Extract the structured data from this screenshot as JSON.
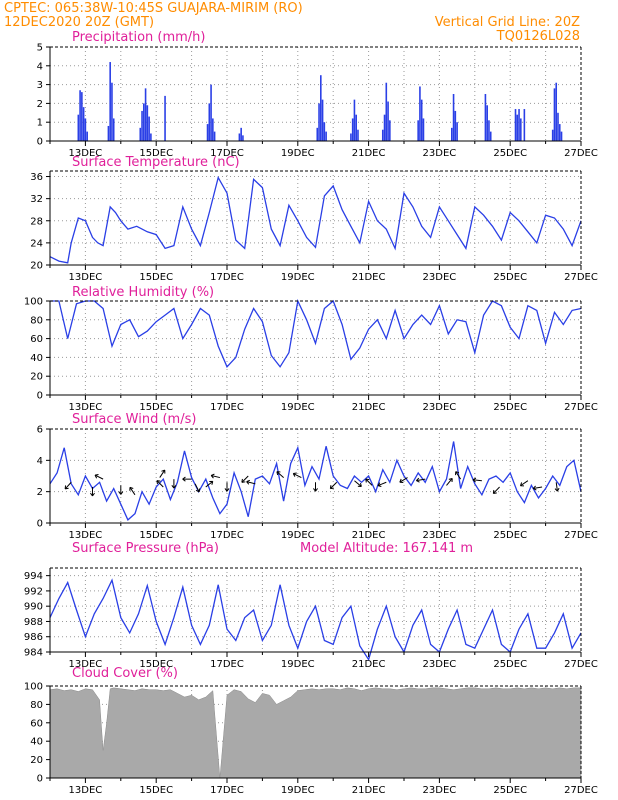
{
  "header": {
    "left_line1": "CPTEC:    065:38W-10:45S    GUAJARA-MIRIM (RO)",
    "left_line2": "12DEC2020 20Z (GMT)",
    "right_line1": "Vertical Grid Line: 20Z",
    "right_line2": "TQ0126L028"
  },
  "colors": {
    "header": "#ff8c00",
    "title": "#e0209a",
    "line": "#2a3fe6",
    "bar": "#2a3fe6",
    "cloud": "#a9a9a9",
    "grid": "#9a9a9a"
  },
  "x_day_labels": [
    "13DEC",
    "15DEC",
    "17DEC",
    "19DEC",
    "21DEC",
    "23DEC",
    "25DEC",
    "27DEC"
  ],
  "chart_data": [
    {
      "id": "precip",
      "type": "bar",
      "title": "Precipitation (mm/h)",
      "ylim": [
        0,
        5
      ],
      "yticks": [
        0,
        1,
        2,
        3,
        4,
        5
      ],
      "x_unit": "days since 12DEC2020 20Z",
      "bars": [
        [
          0.8,
          1.4
        ],
        [
          0.85,
          2.7
        ],
        [
          0.9,
          2.6
        ],
        [
          0.95,
          1.8
        ],
        [
          1.0,
          1.2
        ],
        [
          1.05,
          0.5
        ],
        [
          1.65,
          0.8
        ],
        [
          1.7,
          4.2
        ],
        [
          1.75,
          3.1
        ],
        [
          1.8,
          1.2
        ],
        [
          2.55,
          0.7
        ],
        [
          2.6,
          1.6
        ],
        [
          2.65,
          2.0
        ],
        [
          2.7,
          2.8
        ],
        [
          2.75,
          1.9
        ],
        [
          2.8,
          1.3
        ],
        [
          2.85,
          0.4
        ],
        [
          3.25,
          2.4
        ],
        [
          4.45,
          0.9
        ],
        [
          4.5,
          2.0
        ],
        [
          4.55,
          3.0
        ],
        [
          4.6,
          1.2
        ],
        [
          4.65,
          0.5
        ],
        [
          5.35,
          0.4
        ],
        [
          5.4,
          0.7
        ],
        [
          5.45,
          0.3
        ],
        [
          7.55,
          0.7
        ],
        [
          7.6,
          2.0
        ],
        [
          7.65,
          3.5
        ],
        [
          7.7,
          2.2
        ],
        [
          7.75,
          1.0
        ],
        [
          7.8,
          0.5
        ],
        [
          8.5,
          0.4
        ],
        [
          8.55,
          1.2
        ],
        [
          8.6,
          2.2
        ],
        [
          8.65,
          1.4
        ],
        [
          8.7,
          0.6
        ],
        [
          9.4,
          0.6
        ],
        [
          9.45,
          1.4
        ],
        [
          9.5,
          3.1
        ],
        [
          9.55,
          2.1
        ],
        [
          9.6,
          1.1
        ],
        [
          10.4,
          1.1
        ],
        [
          10.45,
          2.9
        ],
        [
          10.5,
          2.2
        ],
        [
          10.55,
          1.2
        ],
        [
          11.35,
          0.7
        ],
        [
          11.4,
          2.5
        ],
        [
          11.45,
          1.6
        ],
        [
          11.5,
          1.0
        ],
        [
          12.3,
          2.5
        ],
        [
          12.35,
          1.9
        ],
        [
          12.4,
          1.1
        ],
        [
          12.45,
          0.5
        ],
        [
          13.15,
          1.7
        ],
        [
          13.2,
          1.4
        ],
        [
          13.25,
          1.7
        ],
        [
          13.3,
          1.2
        ],
        [
          13.4,
          1.7
        ],
        [
          14.2,
          0.6
        ],
        [
          14.25,
          2.8
        ],
        [
          14.3,
          3.1
        ],
        [
          14.35,
          1.5
        ],
        [
          14.4,
          0.9
        ],
        [
          14.45,
          0.5
        ]
      ]
    },
    {
      "id": "temp",
      "type": "line",
      "title": "Surface Temperature (nC)",
      "ylim": [
        20,
        37
      ],
      "yticks": [
        20,
        24,
        28,
        32,
        36
      ],
      "x_unit": "days since 12DEC2020 20Z",
      "x": [
        0.0,
        0.25,
        0.5,
        0.6,
        0.8,
        1.0,
        1.2,
        1.35,
        1.5,
        1.7,
        1.85,
        2.0,
        2.2,
        2.45,
        2.75,
        3.0,
        3.25,
        3.5,
        3.75,
        4.0,
        4.25,
        4.5,
        4.75,
        5.0,
        5.25,
        5.5,
        5.75,
        6.0,
        6.25,
        6.5,
        6.75,
        7.0,
        7.25,
        7.5,
        7.75,
        8.0,
        8.25,
        8.5,
        8.75,
        9.0,
        9.25,
        9.5,
        9.75,
        10.0,
        10.25,
        10.5,
        10.75,
        11.0,
        11.25,
        11.5,
        11.75,
        12.0,
        12.25,
        12.5,
        12.75,
        13.0,
        13.25,
        13.5,
        13.75,
        14.0,
        14.25,
        14.5,
        14.75,
        15.0
      ],
      "y": [
        21.5,
        20.7,
        20.4,
        24.0,
        28.5,
        28.0,
        25.0,
        24.0,
        23.5,
        30.5,
        29.5,
        28.0,
        26.5,
        27.0,
        26.0,
        25.5,
        23.0,
        23.5,
        30.5,
        26.5,
        23.5,
        29.5,
        35.8,
        33.0,
        24.5,
        23.0,
        35.5,
        34.0,
        26.5,
        23.5,
        30.8,
        28.0,
        25.0,
        23.2,
        32.5,
        34.3,
        30.0,
        27.0,
        24.0,
        31.5,
        28.0,
        26.5,
        23.0,
        33.0,
        30.5,
        27.0,
        25.0,
        30.5,
        28.0,
        25.5,
        23.0,
        30.5,
        29.0,
        27.0,
        24.5,
        29.5,
        28.0,
        26.0,
        24.0,
        29.0,
        28.5,
        26.5,
        23.5,
        28.0
      ]
    },
    {
      "id": "rh",
      "type": "line",
      "title": "Relative Humidity (%)",
      "ylim": [
        0,
        100
      ],
      "yticks": [
        0,
        20,
        40,
        60,
        80,
        100
      ],
      "x_unit": "days since 12DEC2020 20Z",
      "x": [
        0.0,
        0.25,
        0.5,
        0.75,
        1.0,
        1.25,
        1.5,
        1.75,
        2.0,
        2.25,
        2.5,
        2.75,
        3.0,
        3.25,
        3.5,
        3.75,
        4.0,
        4.25,
        4.5,
        4.75,
        5.0,
        5.25,
        5.5,
        5.75,
        6.0,
        6.25,
        6.5,
        6.75,
        7.0,
        7.25,
        7.5,
        7.75,
        8.0,
        8.25,
        8.5,
        8.75,
        9.0,
        9.25,
        9.5,
        9.75,
        10.0,
        10.25,
        10.5,
        10.75,
        11.0,
        11.25,
        11.5,
        11.75,
        12.0,
        12.25,
        12.5,
        12.75,
        13.0,
        13.25,
        13.5,
        13.75,
        14.0,
        14.25,
        14.5,
        14.75,
        15.0
      ],
      "y": [
        100,
        100,
        60,
        97,
        100,
        100,
        92,
        52,
        75,
        80,
        62,
        68,
        78,
        85,
        92,
        60,
        75,
        92,
        85,
        52,
        30,
        40,
        70,
        92,
        78,
        42,
        30,
        45,
        100,
        80,
        55,
        92,
        100,
        75,
        38,
        50,
        70,
        80,
        60,
        90,
        60,
        75,
        85,
        75,
        95,
        65,
        80,
        78,
        45,
        85,
        100,
        95,
        72,
        60,
        95,
        90,
        55,
        88,
        75,
        90,
        92
      ],
      "point_marks_note": "no markers"
    },
    {
      "id": "wind",
      "type": "line",
      "title": "Surface Wind (m/s)",
      "ylim": [
        0,
        6
      ],
      "yticks": [
        0,
        2,
        4,
        6
      ],
      "x_unit": "days since 12DEC2020 20Z",
      "x": [
        0.0,
        0.2,
        0.4,
        0.6,
        0.8,
        1.0,
        1.2,
        1.4,
        1.6,
        1.8,
        2.0,
        2.2,
        2.4,
        2.6,
        2.8,
        3.0,
        3.2,
        3.4,
        3.6,
        3.8,
        4.0,
        4.2,
        4.4,
        4.6,
        4.8,
        5.0,
        5.2,
        5.4,
        5.6,
        5.8,
        6.0,
        6.2,
        6.4,
        6.6,
        6.8,
        7.0,
        7.2,
        7.4,
        7.6,
        7.8,
        8.0,
        8.2,
        8.4,
        8.6,
        8.8,
        9.0,
        9.2,
        9.4,
        9.6,
        9.8,
        10.0,
        10.2,
        10.4,
        10.6,
        10.8,
        11.0,
        11.2,
        11.4,
        11.6,
        11.8,
        12.0,
        12.2,
        12.4,
        12.6,
        12.8,
        13.0,
        13.2,
        13.4,
        13.6,
        13.8,
        14.0,
        14.2,
        14.4,
        14.6,
        14.8,
        15.0
      ],
      "y": [
        2.5,
        3.2,
        4.8,
        2.5,
        1.8,
        3.0,
        2.2,
        2.6,
        1.4,
        2.2,
        1.2,
        0.2,
        0.6,
        2.0,
        1.2,
        2.3,
        2.8,
        1.5,
        2.6,
        4.6,
        2.9,
        2.0,
        2.8,
        1.6,
        0.6,
        1.2,
        3.2,
        2.0,
        0.4,
        2.8,
        3.0,
        2.5,
        3.8,
        1.4,
        3.8,
        4.8,
        2.4,
        3.6,
        2.8,
        4.9,
        3.0,
        2.4,
        2.2,
        3.0,
        2.6,
        3.0,
        2.0,
        3.4,
        2.6,
        4.0,
        3.0,
        2.4,
        3.2,
        2.6,
        3.6,
        2.0,
        2.8,
        5.2,
        2.2,
        3.6,
        2.5,
        1.8,
        2.8,
        3.0,
        2.6,
        3.2,
        2.0,
        1.3,
        2.4,
        1.6,
        2.2,
        3.0,
        2.4,
        3.6,
        4.0,
        2.0
      ],
      "arrows": [
        [
          0.6,
          2.6,
          -2.2,
          -2.4
        ],
        [
          1.2,
          2.3,
          0,
          -3
        ],
        [
          1.5,
          2.8,
          -2,
          1
        ],
        [
          2.0,
          2.4,
          0,
          -3
        ],
        [
          2.4,
          1.8,
          -1,
          1.5
        ],
        [
          3.1,
          2.9,
          1,
          1.5
        ],
        [
          3.2,
          2.3,
          -2.2,
          2.2
        ],
        [
          3.5,
          2.8,
          0,
          -3
        ],
        [
          4.0,
          2.8,
          -3,
          0
        ],
        [
          4.1,
          2.5,
          1,
          -2
        ],
        [
          4.4,
          2.3,
          2.5,
          2
        ],
        [
          4.8,
          2.9,
          -2.5,
          0.6
        ],
        [
          5.0,
          2.6,
          0,
          -3
        ],
        [
          5.6,
          3.0,
          -2,
          -2
        ],
        [
          5.8,
          2.5,
          -2,
          0.5
        ],
        [
          6.6,
          2.9,
          -2.5,
          2.2
        ],
        [
          7.1,
          2.9,
          -2,
          1
        ],
        [
          7.5,
          2.6,
          0,
          -3
        ],
        [
          8.1,
          2.6,
          -2,
          -2
        ],
        [
          8.6,
          2.7,
          2.4,
          -2
        ],
        [
          9.1,
          2.4,
          -2,
          2
        ],
        [
          9.5,
          2.6,
          -2.5,
          -1
        ],
        [
          10.1,
          2.9,
          -2.5,
          -1.5
        ],
        [
          10.6,
          2.8,
          -3,
          -0.5
        ],
        [
          11.2,
          2.4,
          2,
          2.4
        ],
        [
          11.6,
          2.8,
          -1.5,
          2.3
        ],
        [
          12.2,
          2.7,
          -3,
          0.3
        ],
        [
          12.7,
          2.3,
          -2.3,
          -2.4
        ],
        [
          13.5,
          2.7,
          -2.2,
          -1.5
        ],
        [
          13.9,
          2.3,
          -3,
          -0.5
        ],
        [
          14.3,
          2.6,
          0.4,
          -3
        ]
      ]
    },
    {
      "id": "pres",
      "type": "line",
      "title": "Surface Pressure (hPa)",
      "subtitle": "Model Altitude: 167.141 m",
      "ylim": [
        984,
        995
      ],
      "yticks": [
        984,
        986,
        988,
        990,
        992,
        994
      ],
      "x_unit": "days since 12DEC2020 20Z",
      "x": [
        0.0,
        0.25,
        0.5,
        0.75,
        1.0,
        1.25,
        1.5,
        1.75,
        2.0,
        2.25,
        2.5,
        2.75,
        3.0,
        3.25,
        3.5,
        3.75,
        4.0,
        4.25,
        4.5,
        4.75,
        5.0,
        5.25,
        5.5,
        5.75,
        6.0,
        6.25,
        6.5,
        6.75,
        7.0,
        7.25,
        7.5,
        7.75,
        8.0,
        8.25,
        8.5,
        8.75,
        9.0,
        9.25,
        9.5,
        9.75,
        10.0,
        10.25,
        10.5,
        10.75,
        11.0,
        11.25,
        11.5,
        11.75,
        12.0,
        12.25,
        12.5,
        12.75,
        13.0,
        13.25,
        13.5,
        13.75,
        14.0,
        14.25,
        14.5,
        14.75,
        15.0
      ],
      "y": [
        988.5,
        991.0,
        993.1,
        989.5,
        986.0,
        989.0,
        991.0,
        993.4,
        988.5,
        986.5,
        989.0,
        992.7,
        988.0,
        985.0,
        988.5,
        992.5,
        987.5,
        985.0,
        987.5,
        992.8,
        987.0,
        985.5,
        988.5,
        989.5,
        985.5,
        987.5,
        992.8,
        987.5,
        984.5,
        988.0,
        990.0,
        985.5,
        985.0,
        988.5,
        990.0,
        984.8,
        983.0,
        987.0,
        990.0,
        986.0,
        984.0,
        987.5,
        989.5,
        985.0,
        984.0,
        987.0,
        989.5,
        985.0,
        984.5,
        987.0,
        989.5,
        985.0,
        984.0,
        987.0,
        989.0,
        984.5,
        984.5,
        986.5,
        989.0,
        984.5,
        986.5
      ]
    },
    {
      "id": "cloud",
      "type": "area",
      "title": "Cloud Cover (%)",
      "ylim": [
        0,
        100
      ],
      "yticks": [
        0,
        20,
        40,
        60,
        80,
        100
      ],
      "x_unit": "days since 12DEC2020 20Z",
      "x": [
        0.0,
        0.2,
        0.4,
        0.6,
        0.8,
        1.0,
        1.2,
        1.4,
        1.5,
        1.6,
        1.7,
        1.8,
        2.0,
        2.2,
        2.4,
        2.6,
        2.8,
        3.0,
        3.2,
        3.4,
        3.6,
        3.8,
        4.0,
        4.2,
        4.4,
        4.6,
        4.8,
        5.0,
        5.2,
        5.4,
        5.6,
        5.8,
        6.0,
        6.2,
        6.4,
        6.6,
        6.8,
        7.0,
        7.2,
        7.4,
        7.6,
        7.8,
        8.0,
        8.2,
        8.4,
        8.6,
        8.8,
        9.0,
        9.2,
        9.4,
        9.6,
        9.8,
        10.0,
        10.2,
        10.4,
        10.6,
        10.8,
        11.0,
        11.2,
        11.4,
        11.6,
        11.8,
        12.0,
        12.2,
        12.4,
        12.6,
        12.8,
        13.0,
        13.2,
        13.4,
        13.6,
        13.8,
        14.0,
        14.2,
        14.4,
        14.6,
        14.8,
        15.0
      ],
      "y": [
        96,
        97,
        95,
        96,
        94,
        97,
        96,
        85,
        30,
        60,
        97,
        98,
        97,
        96,
        95,
        97,
        96,
        96,
        95,
        96,
        92,
        88,
        90,
        85,
        88,
        95,
        0,
        90,
        96,
        94,
        86,
        82,
        92,
        90,
        80,
        84,
        88,
        95,
        96,
        97,
        96,
        97,
        97,
        96,
        98,
        97,
        95,
        97,
        98,
        97,
        97,
        96,
        97,
        98,
        97,
        97,
        98,
        98,
        97,
        96,
        97,
        98,
        98,
        97,
        97,
        98,
        97,
        97,
        98,
        97,
        98,
        97,
        98,
        97,
        98,
        97,
        98,
        98
      ]
    }
  ]
}
